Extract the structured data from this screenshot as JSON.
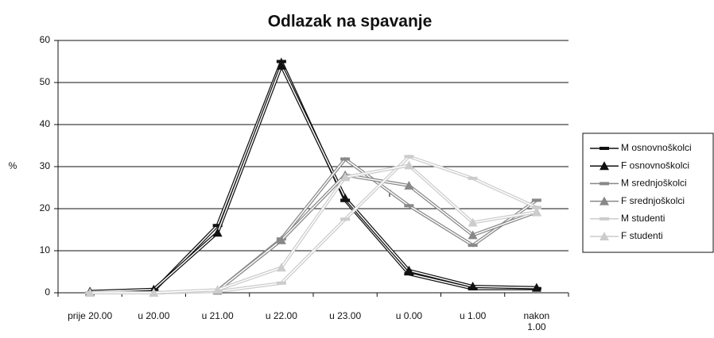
{
  "chart_data": {
    "type": "line",
    "title": "Odlazak na spavanje",
    "y_label": "%",
    "annotation": "f",
    "categories": [
      "prije 20.00",
      "u 20.00",
      "u 21.00",
      "u 22.00",
      "u 23.00",
      "u  0.00",
      "u  1.00",
      "nakon 1.00"
    ],
    "series": [
      {
        "name": "M osnovnoškolci",
        "color": "#111111",
        "marker": "dash",
        "values": [
          0,
          0.5,
          16,
          55,
          22,
          4.5,
          1,
          1
        ]
      },
      {
        "name": "F osnovnoškolci",
        "color": "#111111",
        "marker": "triangle",
        "values": [
          0.3,
          0.8,
          14.3,
          54,
          22.5,
          5.3,
          1.5,
          1.2
        ]
      },
      {
        "name": "M srednjoškolci",
        "color": "#888888",
        "marker": "dash",
        "values": [
          0,
          0,
          0.5,
          12.8,
          31.8,
          20.7,
          11.3,
          22
        ]
      },
      {
        "name": "F srednjoškolci",
        "color": "#888888",
        "marker": "triangle",
        "values": [
          0,
          0,
          0.5,
          12.5,
          28,
          25.5,
          13.7,
          19.2
        ]
      },
      {
        "name": "M studenti",
        "color": "#cccccc",
        "marker": "dash",
        "values": [
          0,
          0,
          0.3,
          2.3,
          17.5,
          32.4,
          27.2,
          20.3
        ]
      },
      {
        "name": "F studenti",
        "color": "#cccccc",
        "marker": "triangle",
        "values": [
          0,
          0,
          0.7,
          6,
          27.5,
          30.3,
          16.7,
          19.2
        ]
      }
    ],
    "ylim": [
      0,
      60
    ],
    "yticks": [
      0,
      10,
      20,
      30,
      40,
      50,
      60
    ],
    "grid": true,
    "legend": "right"
  }
}
